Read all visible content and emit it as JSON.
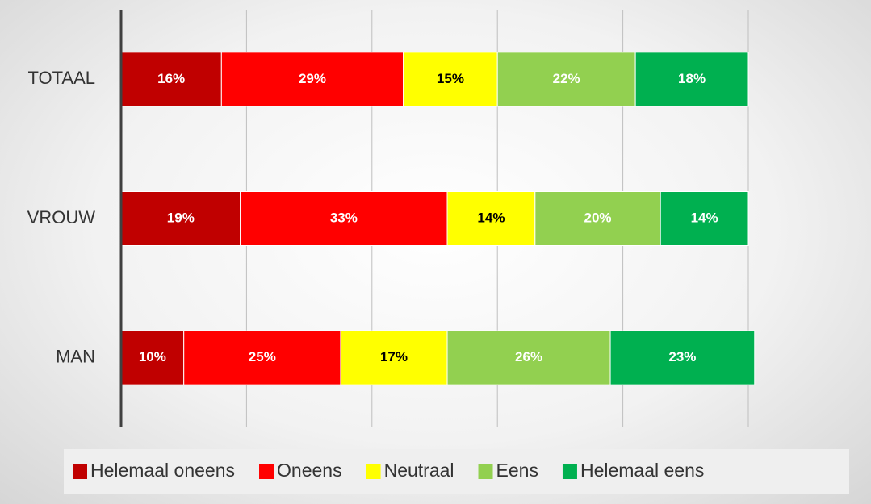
{
  "chart_data": {
    "type": "stacked-bar-horizontal",
    "categories": [
      "TOTAAL",
      "VROUW",
      "MAN"
    ],
    "series": [
      {
        "name": "Helemaal oneens",
        "color": "#c00000",
        "label_color": "#ffffff",
        "values": [
          16,
          19,
          10
        ],
        "value_labels": [
          "16%",
          "19%",
          "10%"
        ]
      },
      {
        "name": "Oneens",
        "color": "#ff0000",
        "label_color": "#ffffff",
        "values": [
          29,
          33,
          25
        ],
        "value_labels": [
          "29%",
          "33%",
          "25%"
        ]
      },
      {
        "name": "Neutraal",
        "color": "#ffff00",
        "label_color": "#000000",
        "values": [
          15,
          14,
          17
        ],
        "value_labels": [
          "15%",
          "14%",
          "17%"
        ]
      },
      {
        "name": "Eens",
        "color": "#92d050",
        "label_color": "#ffffff",
        "values": [
          22,
          20,
          26
        ],
        "value_labels": [
          "22%",
          "20%",
          "26%"
        ]
      },
      {
        "name": "Helemaal eens",
        "color": "#00b050",
        "label_color": "#ffffff",
        "values": [
          18,
          14,
          23
        ],
        "value_labels": [
          "18%",
          "14%",
          "23%"
        ]
      }
    ],
    "xlim": [
      0,
      100
    ],
    "xticks": [
      0,
      20,
      40,
      60,
      80,
      100
    ],
    "grid": true,
    "legend": "bottom"
  }
}
